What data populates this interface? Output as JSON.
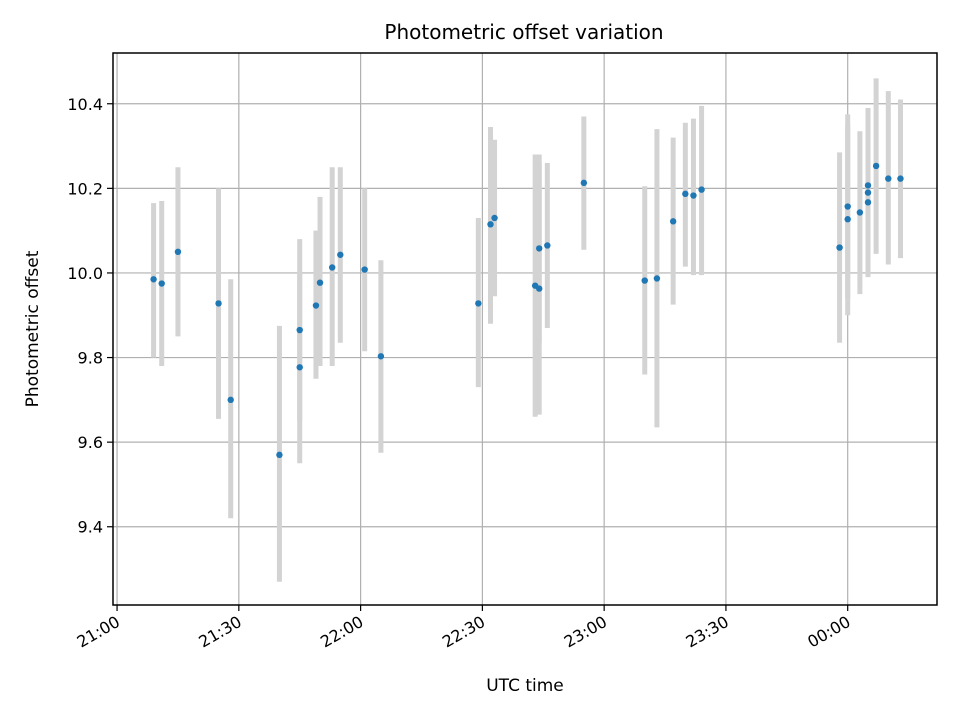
{
  "chart_data": {
    "type": "scatter",
    "title": "Photometric offset variation",
    "xlabel": "UTC time",
    "ylabel": "Photometric offset",
    "x_ticks": [
      "21:00",
      "21:30",
      "22:00",
      "22:30",
      "23:00",
      "23:30",
      "00:00"
    ],
    "y_ticks": [
      "9.4",
      "9.6",
      "9.8",
      "10.0",
      "10.2",
      "10.4"
    ],
    "xlim": [
      "20:59",
      "00:22"
    ],
    "ylim": [
      9.215,
      10.52
    ],
    "grid": true,
    "colors": {
      "points": "#1f77b4",
      "errorbars": "#d3d3d3",
      "grid": "#b0b0b0"
    },
    "points": [
      {
        "t": "21:09",
        "y": 9.985,
        "lo": 9.8,
        "hi": 10.165
      },
      {
        "t": "21:11",
        "y": 9.975,
        "lo": 9.78,
        "hi": 10.17
      },
      {
        "t": "21:15",
        "y": 10.05,
        "lo": 9.85,
        "hi": 10.25
      },
      {
        "t": "21:25",
        "y": 9.928,
        "lo": 9.655,
        "hi": 10.2
      },
      {
        "t": "21:28",
        "y": 9.7,
        "lo": 9.42,
        "hi": 9.985
      },
      {
        "t": "21:40",
        "y": 9.57,
        "lo": 9.27,
        "hi": 9.875
      },
      {
        "t": "21:45",
        "y": 9.865,
        "lo": 9.65,
        "hi": 10.08
      },
      {
        "t": "21:45",
        "y": 9.777,
        "lo": 9.55,
        "hi": 10.0
      },
      {
        "t": "21:49",
        "y": 9.923,
        "lo": 9.75,
        "hi": 10.1
      },
      {
        "t": "21:50",
        "y": 9.977,
        "lo": 9.78,
        "hi": 10.18
      },
      {
        "t": "21:53",
        "y": 10.013,
        "lo": 9.78,
        "hi": 10.25
      },
      {
        "t": "21:55",
        "y": 10.043,
        "lo": 9.835,
        "hi": 10.25
      },
      {
        "t": "22:01",
        "y": 10.008,
        "lo": 9.815,
        "hi": 10.2
      },
      {
        "t": "22:05",
        "y": 9.803,
        "lo": 9.575,
        "hi": 10.03
      },
      {
        "t": "22:29",
        "y": 9.928,
        "lo": 9.73,
        "hi": 10.13
      },
      {
        "t": "22:32",
        "y": 10.115,
        "lo": 9.88,
        "hi": 10.345
      },
      {
        "t": "22:33",
        "y": 10.13,
        "lo": 9.945,
        "hi": 10.315
      },
      {
        "t": "22:43",
        "y": 9.97,
        "lo": 9.66,
        "hi": 10.28
      },
      {
        "t": "22:44",
        "y": 9.963,
        "lo": 9.665,
        "hi": 10.26
      },
      {
        "t": "22:44",
        "y": 10.058,
        "lo": 9.835,
        "hi": 10.28
      },
      {
        "t": "22:46",
        "y": 10.065,
        "lo": 9.87,
        "hi": 10.26
      },
      {
        "t": "22:55",
        "y": 10.213,
        "lo": 10.055,
        "hi": 10.37
      },
      {
        "t": "23:10",
        "y": 9.982,
        "lo": 9.76,
        "hi": 10.205
      },
      {
        "t": "23:13",
        "y": 9.987,
        "lo": 9.635,
        "hi": 10.34
      },
      {
        "t": "23:17",
        "y": 10.122,
        "lo": 9.925,
        "hi": 10.32
      },
      {
        "t": "23:20",
        "y": 10.187,
        "lo": 10.015,
        "hi": 10.355
      },
      {
        "t": "23:22",
        "y": 10.183,
        "lo": 9.995,
        "hi": 10.365
      },
      {
        "t": "23:24",
        "y": 10.197,
        "lo": 9.995,
        "hi": 10.395
      },
      {
        "t": "23:58",
        "y": 10.06,
        "lo": 9.835,
        "hi": 10.285
      },
      {
        "t": "00:00",
        "y": 10.157,
        "lo": 9.94,
        "hi": 10.375
      },
      {
        "t": "00:00",
        "y": 10.127,
        "lo": 9.9,
        "hi": 10.35
      },
      {
        "t": "00:03",
        "y": 10.143,
        "lo": 9.95,
        "hi": 10.335
      },
      {
        "t": "00:05",
        "y": 10.167,
        "lo": 9.99,
        "hi": 10.345
      },
      {
        "t": "00:05",
        "y": 10.19,
        "lo": 10.0,
        "hi": 10.39
      },
      {
        "t": "00:05",
        "y": 10.207,
        "lo": 10.03,
        "hi": 10.385
      },
      {
        "t": "00:07",
        "y": 10.253,
        "lo": 10.045,
        "hi": 10.46
      },
      {
        "t": "00:10",
        "y": 10.223,
        "lo": 10.02,
        "hi": 10.43
      },
      {
        "t": "00:13",
        "y": 10.223,
        "lo": 10.035,
        "hi": 10.41
      }
    ]
  }
}
